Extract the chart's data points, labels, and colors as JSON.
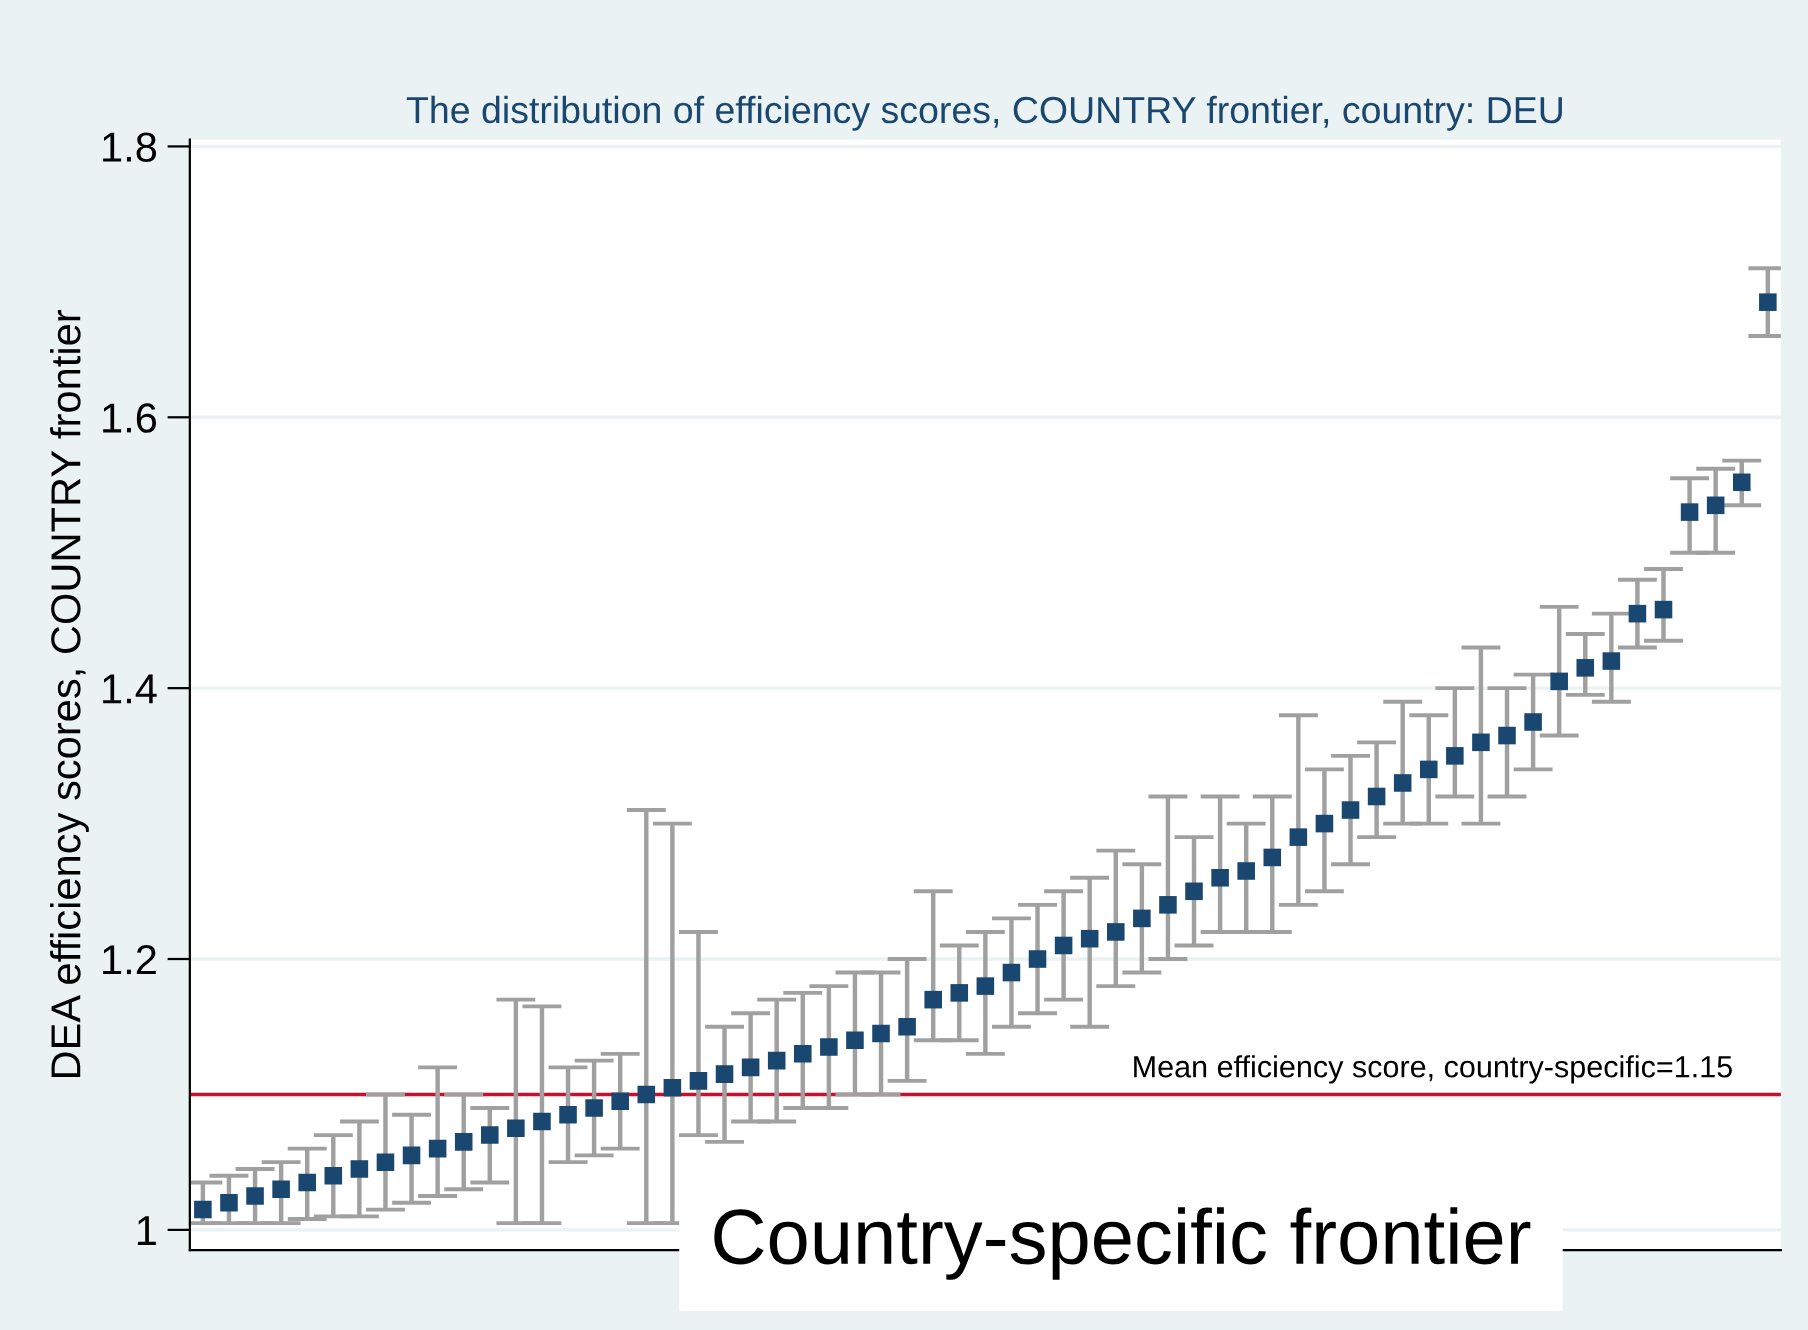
{
  "chart_data": {
    "type": "scatter",
    "title": "The distribution of efficiency scores, COUNTRY frontier, country: DEU",
    "ylabel": "DEA efficiency scores, COUNTRY frontier",
    "categories": [
      null,
      null,
      null,
      null,
      null,
      null,
      null,
      null,
      null,
      null,
      null,
      null,
      null,
      null,
      null,
      null,
      null,
      null,
      null,
      null,
      null,
      null,
      null,
      null,
      null,
      null,
      null,
      null,
      null,
      null,
      null,
      null,
      null,
      null,
      null,
      null,
      null,
      null,
      null,
      null,
      null,
      null,
      null,
      null,
      null,
      null,
      null,
      null,
      null,
      null,
      null,
      null,
      null,
      null,
      null,
      null,
      null,
      null,
      null,
      null,
      null
    ],
    "ylim": [
      0.985,
      1.805
    ],
    "yticks": [
      1,
      1.2,
      1.4,
      1.6,
      1.8
    ],
    "grid": "y",
    "marker": "square",
    "series": [
      {
        "color": "#1a476f",
        "values": [
          1.015,
          1.02,
          1.025,
          1.03,
          1.035,
          1.04,
          1.045,
          1.05,
          1.055,
          1.06,
          1.065,
          1.07,
          1.075,
          1.08,
          1.085,
          1.09,
          1.095,
          1.1,
          1.105,
          1.11,
          1.115,
          1.12,
          1.125,
          1.13,
          1.135,
          1.14,
          1.145,
          1.15,
          1.17,
          1.175,
          1.18,
          1.19,
          1.2,
          1.21,
          1.215,
          1.22,
          1.23,
          1.24,
          1.25,
          1.26,
          1.265,
          1.275,
          1.29,
          1.3,
          1.31,
          1.32,
          1.33,
          1.34,
          1.35,
          1.36,
          1.365,
          1.375,
          1.405,
          1.415,
          1.42,
          1.455,
          1.458,
          1.53,
          1.535,
          1.552,
          1.685
        ],
        "errors": [
          [
            1.005,
            1.035
          ],
          [
            1.005,
            1.04
          ],
          [
            1.005,
            1.045
          ],
          [
            1.005,
            1.05
          ],
          [
            1.008,
            1.06
          ],
          [
            1.01,
            1.07
          ],
          [
            1.01,
            1.08
          ],
          [
            1.015,
            1.1
          ],
          [
            1.02,
            1.085
          ],
          [
            1.025,
            1.12
          ],
          [
            1.03,
            1.1
          ],
          [
            1.035,
            1.09
          ],
          [
            1.005,
            1.17
          ],
          [
            1.005,
            1.165
          ],
          [
            1.05,
            1.12
          ],
          [
            1.055,
            1.125
          ],
          [
            1.06,
            1.13
          ],
          [
            1.005,
            1.31
          ],
          [
            1.005,
            1.3
          ],
          [
            1.07,
            1.22
          ],
          [
            1.065,
            1.15
          ],
          [
            1.08,
            1.16
          ],
          [
            1.08,
            1.17
          ],
          [
            1.09,
            1.175
          ],
          [
            1.09,
            1.18
          ],
          [
            1.1,
            1.19
          ],
          [
            1.1,
            1.19
          ],
          [
            1.11,
            1.2
          ],
          [
            1.14,
            1.25
          ],
          [
            1.14,
            1.21
          ],
          [
            1.13,
            1.22
          ],
          [
            1.15,
            1.23
          ],
          [
            1.16,
            1.24
          ],
          [
            1.17,
            1.25
          ],
          [
            1.15,
            1.26
          ],
          [
            1.18,
            1.28
          ],
          [
            1.19,
            1.27
          ],
          [
            1.2,
            1.32
          ],
          [
            1.21,
            1.29
          ],
          [
            1.22,
            1.32
          ],
          [
            1.22,
            1.3
          ],
          [
            1.22,
            1.32
          ],
          [
            1.24,
            1.38
          ],
          [
            1.25,
            1.34
          ],
          [
            1.27,
            1.35
          ],
          [
            1.29,
            1.36
          ],
          [
            1.3,
            1.39
          ],
          [
            1.3,
            1.38
          ],
          [
            1.32,
            1.4
          ],
          [
            1.3,
            1.43
          ],
          [
            1.32,
            1.4
          ],
          [
            1.34,
            1.41
          ],
          [
            1.365,
            1.46
          ],
          [
            1.395,
            1.44
          ],
          [
            1.39,
            1.455
          ],
          [
            1.43,
            1.48
          ],
          [
            1.435,
            1.488
          ],
          [
            1.5,
            1.555
          ],
          [
            1.5,
            1.562
          ],
          [
            1.535,
            1.568
          ],
          [
            1.66,
            1.71
          ]
        ]
      }
    ],
    "ref_lines": [
      {
        "axis": "y",
        "value": 1.1,
        "color": "#c8102e"
      }
    ],
    "annotations": [
      "Mean efficiency score, country-specific=1.15",
      "Country-specific frontier"
    ]
  }
}
